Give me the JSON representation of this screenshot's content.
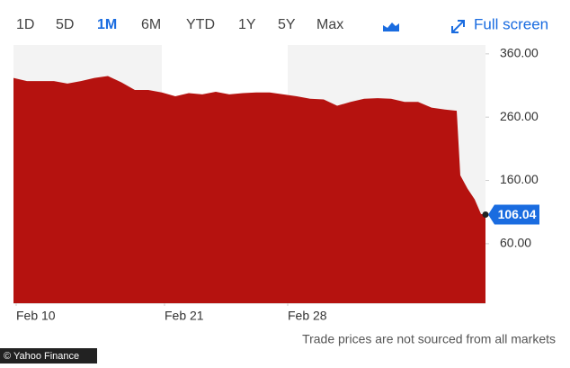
{
  "toolbar": {
    "ranges": [
      "1D",
      "5D",
      "1M",
      "6M",
      "YTD",
      "1Y",
      "5Y",
      "Max"
    ],
    "active_range": 2,
    "fullscreen": "Full screen"
  },
  "chart_data": {
    "type": "area",
    "color": "#b5120f",
    "x": [
      0,
      3,
      9,
      12,
      15,
      18,
      21,
      24,
      27,
      30,
      33,
      36,
      39,
      42,
      45,
      48,
      51,
      54,
      57,
      60,
      63,
      66,
      69,
      72,
      75,
      78,
      81,
      84,
      87,
      90,
      93,
      96,
      98.6,
      99.4,
      101,
      102.6,
      104,
      105
    ],
    "values": [
      322,
      317,
      317,
      313,
      317,
      322,
      325,
      315,
      303,
      303,
      299,
      293,
      298,
      296,
      300,
      296,
      298,
      299,
      299,
      296,
      293,
      289,
      288,
      278,
      284,
      289,
      290,
      289,
      284,
      284,
      275,
      272,
      270,
      168,
      147,
      130,
      107,
      106.04
    ],
    "xlim": [
      0,
      105
    ],
    "xticks": [
      {
        "value": 0.6,
        "label": "Feb 10"
      },
      {
        "value": 33.6,
        "label": "Feb 21"
      },
      {
        "value": 61,
        "label": "Feb 28"
      }
    ],
    "ylim": [
      -34,
      374
    ],
    "yticks": [
      {
        "value": 360,
        "label": "360.00"
      },
      {
        "value": 260,
        "label": "260.00"
      },
      {
        "value": 160,
        "label": "160.00"
      },
      {
        "value": 60,
        "label": "60.00"
      }
    ]
  },
  "footer": {
    "note": "Trade prices are not sourced from all markets",
    "source": "© Yahoo Finance"
  }
}
